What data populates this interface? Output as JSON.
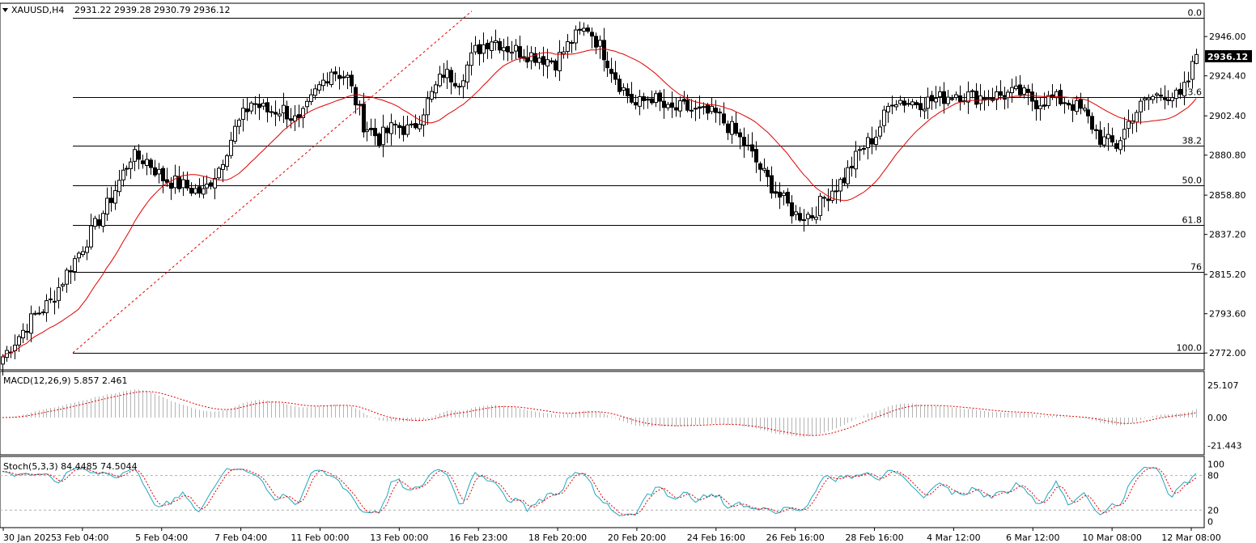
{
  "header": {
    "symbol": "XAUUSD,H4",
    "ohlc": "2931.22 2939.28 2930.79 2936.12"
  },
  "current_price": "2936.12",
  "colors": {
    "background": "#ffffff",
    "candle": "#000000",
    "ma": "#e00000",
    "fib": "#000000",
    "macd_hist": "#b4b4b4",
    "macd_signal": "#e00000",
    "stoch_main": "#1fa7c0",
    "stoch_signal": "#e00000",
    "trendline": "#e00000"
  },
  "chart_data": {
    "type": "candlestick",
    "symbol": "XAUUSD",
    "timeframe": "H4",
    "ylim": [
      2765,
      2965
    ],
    "yticks": [
      "2946.00",
      "2924.40",
      "2902.40",
      "2880.80",
      "2858.80",
      "2837.20",
      "2815.20",
      "2793.60",
      "2772.00"
    ],
    "ytick_values": [
      2946.0,
      2924.4,
      2902.4,
      2880.8,
      2858.8,
      2837.2,
      2815.2,
      2793.6,
      2772.0
    ],
    "xticks": [
      "30 Jan 2025",
      "3 Feb 04:00",
      "5 Feb 04:00",
      "7 Feb 04:00",
      "11 Feb 00:00",
      "13 Feb 00:00",
      "16 Feb 23:00",
      "18 Feb 20:00",
      "20 Feb 20:00",
      "24 Feb 16:00",
      "26 Feb 16:00",
      "28 Feb 16:00",
      "4 Mar 12:00",
      "6 Mar 12:00",
      "10 Mar 08:00",
      "12 Mar 08:00"
    ],
    "fibonacci": {
      "levels": [
        {
          "label": "0.0",
          "price": 2956.3
        },
        {
          "label": "23.6",
          "price": 2912.8
        },
        {
          "label": "38.2",
          "price": 2885.9
        },
        {
          "label": "50.0",
          "price": 2864.2
        },
        {
          "label": "61.8",
          "price": 2842.4
        },
        {
          "label": "76",
          "price": 2816.4
        },
        {
          "label": "100.0",
          "price": 2772.1
        }
      ]
    },
    "anchors": [
      [
        0,
        2770
      ],
      [
        8,
        2793
      ],
      [
        12,
        2800
      ],
      [
        16,
        2816
      ],
      [
        22,
        2838
      ],
      [
        26,
        2853
      ],
      [
        32,
        2880
      ],
      [
        36,
        2878
      ],
      [
        40,
        2868
      ],
      [
        46,
        2863
      ],
      [
        50,
        2860
      ],
      [
        54,
        2874
      ],
      [
        58,
        2895
      ],
      [
        62,
        2910
      ],
      [
        66,
        2905
      ],
      [
        70,
        2906
      ],
      [
        74,
        2898
      ],
      [
        78,
        2915
      ],
      [
        82,
        2928
      ],
      [
        86,
        2923
      ],
      [
        90,
        2898
      ],
      [
        94,
        2890
      ],
      [
        98,
        2897
      ],
      [
        102,
        2894
      ],
      [
        106,
        2910
      ],
      [
        110,
        2926
      ],
      [
        114,
        2922
      ],
      [
        118,
        2938
      ],
      [
        122,
        2945
      ],
      [
        126,
        2940
      ],
      [
        130,
        2937
      ],
      [
        134,
        2935
      ],
      [
        138,
        2932
      ],
      [
        142,
        2944
      ],
      [
        146,
        2951
      ],
      [
        150,
        2937
      ],
      [
        154,
        2920
      ],
      [
        158,
        2908
      ],
      [
        162,
        2913
      ],
      [
        166,
        2905
      ],
      [
        170,
        2907
      ],
      [
        174,
        2904
      ],
      [
        178,
        2903
      ],
      [
        182,
        2895
      ],
      [
        186,
        2884
      ],
      [
        190,
        2870
      ],
      [
        194,
        2858
      ],
      [
        198,
        2848
      ],
      [
        202,
        2848
      ],
      [
        206,
        2860
      ],
      [
        210,
        2868
      ],
      [
        214,
        2883
      ],
      [
        218,
        2892
      ],
      [
        222,
        2912
      ],
      [
        226,
        2910
      ],
      [
        230,
        2910
      ],
      [
        234,
        2912
      ],
      [
        238,
        2915
      ],
      [
        242,
        2913
      ],
      [
        246,
        2913
      ],
      [
        250,
        2914
      ],
      [
        254,
        2915
      ],
      [
        258,
        2910
      ],
      [
        262,
        2912
      ],
      [
        266,
        2910
      ],
      [
        270,
        2904
      ],
      [
        274,
        2890
      ],
      [
        278,
        2886
      ],
      [
        282,
        2903
      ],
      [
        286,
        2912
      ],
      [
        290,
        2915
      ],
      [
        294,
        2912
      ],
      [
        296,
        2922
      ],
      [
        298,
        2936
      ]
    ],
    "indicators": {
      "ma": "red moving average",
      "macd": {
        "label": "MACD(12,26,9) 5.857 2.461",
        "ylim": [
          -25,
          30
        ],
        "yticks": [
          "25.107",
          "0.00",
          "-21.443"
        ],
        "ytick_values": [
          25.107,
          0,
          -21.443
        ]
      },
      "stoch": {
        "label": "Stoch(5,3,3) 84.4485 74.5044",
        "ylim": [
          -2,
          102
        ],
        "yticks": [
          "100",
          "80",
          "20",
          "0"
        ],
        "ytick_values": [
          100,
          80,
          20,
          0
        ],
        "levels": [
          80,
          20
        ]
      }
    }
  }
}
